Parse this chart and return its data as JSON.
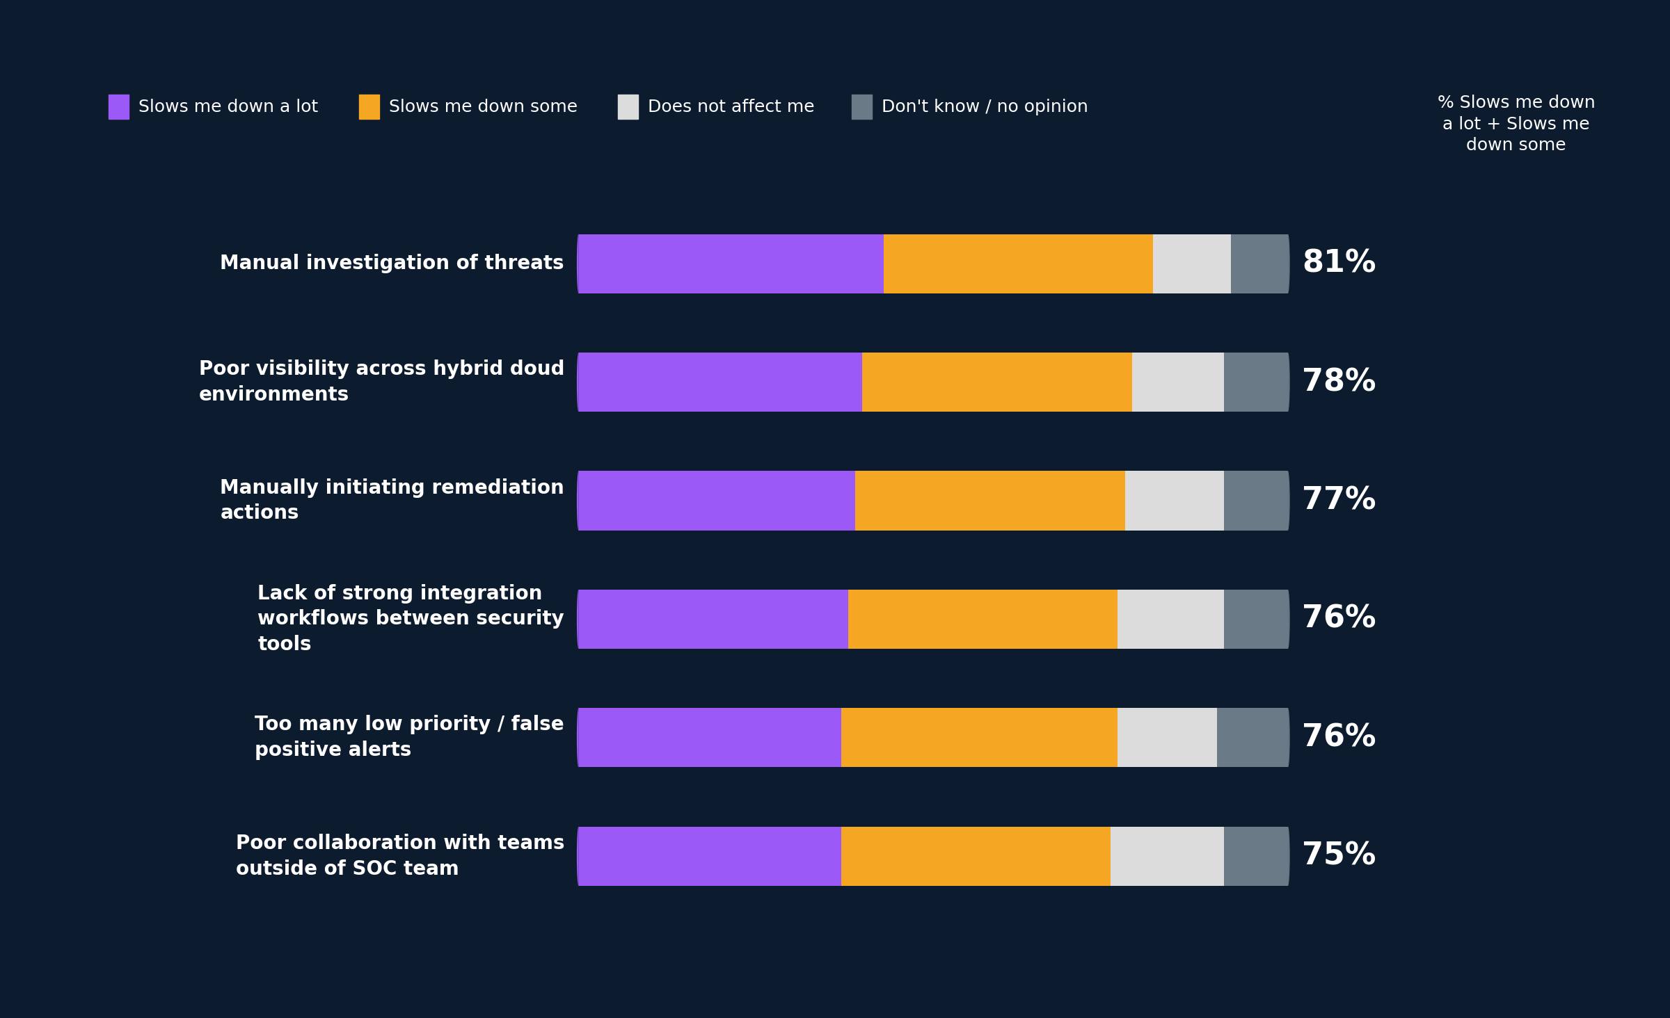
{
  "background_color": "#0d1b2e",
  "categories": [
    "Manual investigation of threats",
    "Poor visibility across hybrid doud\nenvironments",
    "Manually initiating remediation\nactions",
    "Lack of strong integration\nworkflows between security\ntools",
    "Too many low priority / false\npositive alerts",
    "Poor collaboration with teams\noutside of SOC team"
  ],
  "segment_labels": [
    "Slows me down a lot",
    "Slows me down some",
    "Does not affect me",
    "Don't know / no opinion"
  ],
  "segment_colors": [
    "#9b59f5",
    "#f5a623",
    "#dcdcdc",
    "#6b7a87"
  ],
  "values_pct": [
    [
      43,
      38,
      11,
      8
    ],
    [
      40,
      38,
      13,
      9
    ],
    [
      39,
      38,
      14,
      9
    ],
    [
      38,
      38,
      15,
      9
    ],
    [
      37,
      39,
      14,
      10
    ],
    [
      37,
      38,
      16,
      9
    ]
  ],
  "combined_pct": [
    "81%",
    "78%",
    "77%",
    "76%",
    "76%",
    "75%"
  ],
  "legend_header": "% Slows me down\na lot + Slows me\ndown some",
  "text_color": "#ffffff",
  "bar_height": 0.5,
  "pct_fontsize": 32,
  "cat_fontsize": 20,
  "legend_fontsize": 18,
  "legend_header_fontsize": 18
}
